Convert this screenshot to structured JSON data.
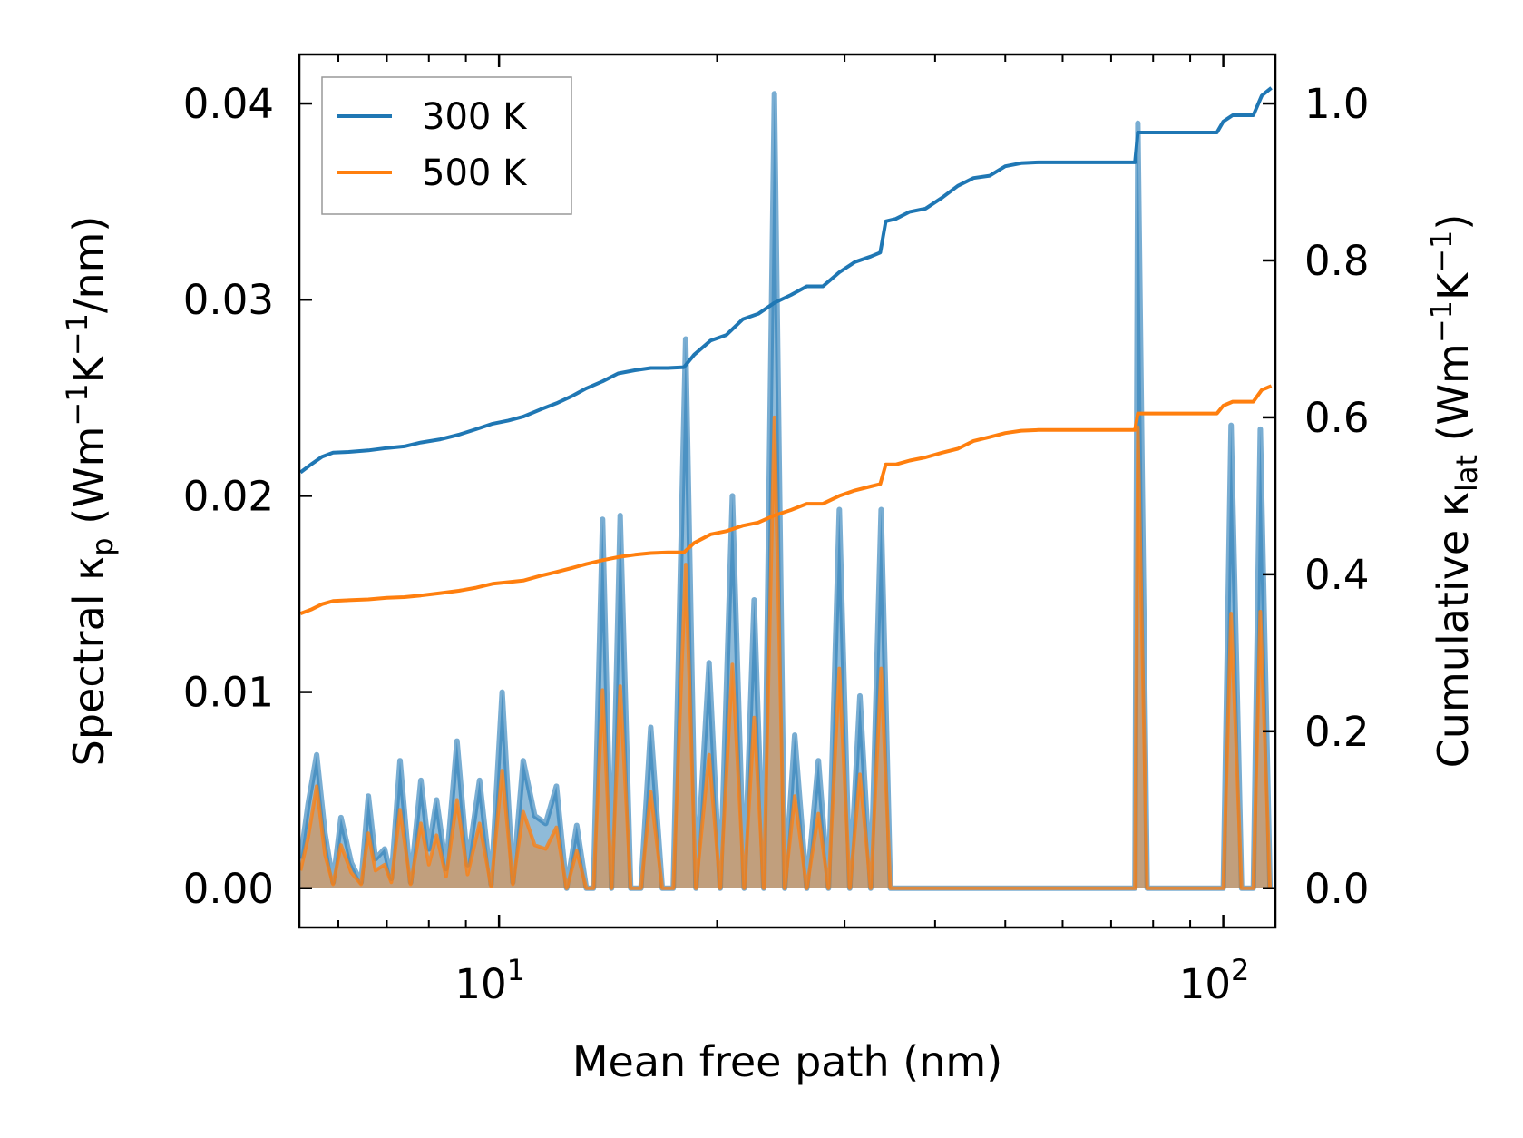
{
  "chart_data": {
    "type": "line",
    "xlabel": "Mean free path (nm)",
    "xscale": "log",
    "xlim": [
      5.3,
      118
    ],
    "ylabel_left": {
      "base": "Spectral κ",
      "sub": "p",
      "unit_pre": " (Wm",
      "sup1": "−1",
      "unit_mid": "K",
      "sup2": "−1",
      "unit_post": "/nm)"
    },
    "ylabel_right": {
      "base": "Cumulative κ",
      "sub": "lat",
      "unit_pre": " (Wm",
      "sup1": "−1",
      "unit_mid": "K",
      "sup2": "−1",
      "unit_post": ")"
    },
    "ylim_left": [
      -0.002,
      0.0425
    ],
    "ylim_right": [
      -0.05,
      1.0625
    ],
    "x_ticks": [
      {
        "value": 10,
        "base": "10",
        "exp": "1"
      },
      {
        "value": 100,
        "base": "10",
        "exp": "2"
      }
    ],
    "y_ticks_left": [
      {
        "value": 0.0,
        "label": "0.00"
      },
      {
        "value": 0.01,
        "label": "0.01"
      },
      {
        "value": 0.02,
        "label": "0.02"
      },
      {
        "value": 0.03,
        "label": "0.03"
      },
      {
        "value": 0.04,
        "label": "0.04"
      }
    ],
    "y_ticks_right": [
      {
        "value": 0.0,
        "label": "0.0"
      },
      {
        "value": 0.2,
        "label": "0.2"
      },
      {
        "value": 0.4,
        "label": "0.4"
      },
      {
        "value": 0.6,
        "label": "0.6"
      },
      {
        "value": 0.8,
        "label": "0.8"
      },
      {
        "value": 1.0,
        "label": "1.0"
      }
    ],
    "legend": {
      "position": "top-left",
      "entries": [
        {
          "name": "300 K",
          "color": "#1f77b4"
        },
        {
          "name": "500 K",
          "color": "#ff7f0e"
        }
      ]
    },
    "series": [
      {
        "name": "300 K",
        "color": "#1f77b4",
        "axis": "right",
        "kind": "cumulative",
        "x": [
          5.32,
          5.5,
          5.7,
          5.9,
          6.2,
          6.6,
          7.0,
          7.4,
          7.8,
          8.3,
          8.8,
          9.3,
          9.8,
          10.3,
          10.8,
          11.4,
          12.0,
          12.6,
          13.2,
          13.9,
          14.6,
          15.4,
          16.2,
          17.1,
          18.0,
          18.6,
          19.6,
          20.6,
          21.7,
          22.8,
          24.0,
          25.3,
          26.6,
          28.0,
          29.5,
          31.0,
          32.6,
          33.6,
          34.2,
          35.3,
          36.9,
          38.8,
          40.9,
          43.0,
          45.2,
          47.6,
          50.0,
          52.6,
          55.5,
          60.0,
          65.0,
          70.0,
          75.5,
          76.2,
          80.0,
          86.0,
          92.0,
          98.0,
          100.0,
          103.0,
          106.0,
          110.0,
          113.0,
          116.5
        ],
        "y": [
          0.53,
          0.54,
          0.55,
          0.555,
          0.556,
          0.558,
          0.561,
          0.563,
          0.568,
          0.572,
          0.578,
          0.585,
          0.592,
          0.596,
          0.601,
          0.61,
          0.618,
          0.627,
          0.637,
          0.646,
          0.656,
          0.66,
          0.663,
          0.663,
          0.664,
          0.68,
          0.698,
          0.705,
          0.725,
          0.732,
          0.746,
          0.756,
          0.767,
          0.767,
          0.785,
          0.798,
          0.805,
          0.81,
          0.85,
          0.853,
          0.862,
          0.866,
          0.88,
          0.895,
          0.905,
          0.908,
          0.92,
          0.924,
          0.925,
          0.925,
          0.925,
          0.925,
          0.925,
          0.963,
          0.963,
          0.963,
          0.963,
          0.963,
          0.977,
          0.985,
          0.985,
          0.985,
          1.01,
          1.02
        ]
      },
      {
        "name": "500 K",
        "color": "#ff7f0e",
        "axis": "right",
        "kind": "cumulative",
        "x": [
          5.32,
          5.5,
          5.7,
          5.9,
          6.2,
          6.6,
          7.0,
          7.4,
          7.8,
          8.3,
          8.8,
          9.3,
          9.8,
          10.3,
          10.8,
          11.4,
          12.0,
          12.6,
          13.2,
          13.9,
          14.6,
          15.4,
          16.2,
          17.1,
          18.0,
          18.6,
          19.6,
          20.6,
          21.7,
          22.8,
          24.0,
          25.3,
          26.6,
          28.0,
          29.5,
          31.0,
          32.6,
          33.6,
          34.2,
          35.3,
          36.9,
          38.8,
          40.9,
          43.0,
          45.2,
          47.6,
          50.0,
          52.6,
          55.5,
          60.0,
          65.0,
          70.0,
          75.5,
          76.2,
          80.0,
          86.0,
          92.0,
          98.0,
          100.0,
          103.0,
          106.0,
          110.0,
          113.0,
          116.5
        ],
        "y": [
          0.35,
          0.355,
          0.362,
          0.366,
          0.367,
          0.368,
          0.37,
          0.371,
          0.373,
          0.376,
          0.379,
          0.383,
          0.388,
          0.39,
          0.392,
          0.398,
          0.403,
          0.408,
          0.413,
          0.418,
          0.422,
          0.425,
          0.427,
          0.428,
          0.428,
          0.44,
          0.451,
          0.455,
          0.462,
          0.466,
          0.475,
          0.482,
          0.49,
          0.49,
          0.5,
          0.507,
          0.512,
          0.515,
          0.54,
          0.54,
          0.545,
          0.549,
          0.555,
          0.56,
          0.57,
          0.575,
          0.58,
          0.583,
          0.584,
          0.584,
          0.584,
          0.584,
          0.584,
          0.605,
          0.605,
          0.605,
          0.605,
          0.605,
          0.615,
          0.62,
          0.62,
          0.62,
          0.635,
          0.64
        ]
      },
      {
        "name": "300 K spectral",
        "color": "#1f77b4",
        "axis": "left",
        "kind": "spectral",
        "x": [
          5.32,
          5.45,
          5.6,
          5.75,
          5.9,
          6.05,
          6.25,
          6.45,
          6.6,
          6.75,
          6.95,
          7.1,
          7.3,
          7.55,
          7.8,
          8.0,
          8.2,
          8.45,
          8.75,
          9.05,
          9.4,
          9.75,
          10.1,
          10.45,
          10.8,
          11.2,
          11.6,
          12.0,
          12.4,
          12.8,
          13.2,
          13.5,
          13.9,
          14.3,
          14.7,
          15.2,
          15.7,
          16.2,
          16.8,
          17.4,
          18.1,
          18.7,
          19.5,
          20.2,
          21.0,
          21.8,
          22.5,
          23.2,
          24.0,
          24.8,
          25.6,
          26.6,
          27.6,
          28.5,
          29.5,
          30.5,
          31.5,
          32.6,
          33.7,
          34.7,
          35.8,
          37.0,
          38.2,
          39.5,
          40.8,
          42.2,
          43.6,
          45.1,
          46.7,
          48.3,
          50.0,
          51.8,
          53.7,
          55.7,
          58.0,
          62.0,
          67.0,
          72.0,
          75.5,
          76.2,
          78.5,
          85.0,
          92.0,
          98.0,
          100.0,
          102.5,
          106.0,
          110.0,
          112.5,
          116.0
        ],
        "y": [
          0.0015,
          0.0043,
          0.0068,
          0.0028,
          0.0003,
          0.0036,
          0.0013,
          0.0003,
          0.0047,
          0.0015,
          0.002,
          0.0005,
          0.0065,
          0.0003,
          0.0055,
          0.002,
          0.0045,
          0.001,
          0.0075,
          0.0012,
          0.0055,
          0.0002,
          0.01,
          0.0003,
          0.0065,
          0.0037,
          0.0033,
          0.0052,
          0.0,
          0.0032,
          0.0,
          0.0,
          0.0188,
          0.0,
          0.019,
          0.0,
          0.0,
          0.0082,
          0.0,
          0.0,
          0.028,
          0.0,
          0.0115,
          0.0,
          0.02,
          0.0,
          0.0147,
          0.0,
          0.0405,
          0.0,
          0.0078,
          0.0,
          0.0065,
          0.0,
          0.0193,
          0.0,
          0.0098,
          0.0,
          0.0193,
          0.0,
          0.0,
          0.0,
          0.0,
          0.0,
          0.0,
          0.0,
          0.0,
          0.0,
          0.0,
          0.0,
          0.0,
          0.0,
          0.0,
          0.0,
          0.0,
          0.0,
          0.0,
          0.0,
          0.0,
          0.039,
          0.0,
          0.0,
          0.0,
          0.0,
          0.0,
          0.0236,
          0.0,
          0.0,
          0.0234,
          0.0
        ]
      },
      {
        "name": "500 K spectral",
        "color": "#ff7f0e",
        "axis": "left",
        "kind": "spectral",
        "x": [
          5.32,
          5.45,
          5.6,
          5.75,
          5.9,
          6.05,
          6.25,
          6.45,
          6.6,
          6.75,
          6.95,
          7.1,
          7.3,
          7.55,
          7.8,
          8.0,
          8.2,
          8.45,
          8.75,
          9.05,
          9.4,
          9.75,
          10.1,
          10.45,
          10.8,
          11.2,
          11.6,
          12.0,
          12.4,
          12.8,
          13.2,
          13.5,
          13.9,
          14.3,
          14.7,
          15.2,
          15.7,
          16.2,
          16.8,
          17.4,
          18.1,
          18.7,
          19.5,
          20.2,
          21.0,
          21.8,
          22.5,
          23.2,
          24.0,
          24.8,
          25.6,
          26.6,
          27.6,
          28.5,
          29.5,
          30.5,
          31.5,
          32.6,
          33.7,
          34.7,
          35.8,
          37.0,
          38.2,
          39.5,
          40.8,
          42.2,
          43.6,
          45.1,
          46.7,
          48.3,
          50.0,
          51.8,
          53.7,
          55.7,
          58.0,
          62.0,
          67.0,
          72.0,
          75.5,
          76.2,
          78.5,
          85.0,
          92.0,
          98.0,
          100.0,
          102.5,
          106.0,
          110.0,
          112.5,
          116.0
        ],
        "y": [
          0.0009,
          0.0026,
          0.0052,
          0.0017,
          0.0002,
          0.0022,
          0.0008,
          0.0002,
          0.0028,
          0.0009,
          0.0012,
          0.0003,
          0.004,
          0.0002,
          0.0033,
          0.0012,
          0.0027,
          0.0006,
          0.0045,
          0.0007,
          0.0033,
          0.0001,
          0.006,
          0.0002,
          0.0039,
          0.0022,
          0.002,
          0.0031,
          0.0,
          0.0019,
          0.0,
          0.0,
          0.0101,
          0.0,
          0.0103,
          0.0,
          0.0,
          0.0049,
          0.0,
          0.0,
          0.0165,
          0.0,
          0.0068,
          0.0,
          0.0114,
          0.0,
          0.0087,
          0.0,
          0.024,
          0.0,
          0.0047,
          0.0,
          0.0038,
          0.0,
          0.0112,
          0.0,
          0.0058,
          0.0,
          0.0112,
          0.0,
          0.0,
          0.0,
          0.0,
          0.0,
          0.0,
          0.0,
          0.0,
          0.0,
          0.0,
          0.0,
          0.0,
          0.0,
          0.0,
          0.0,
          0.0,
          0.0,
          0.0,
          0.0,
          0.0,
          0.0235,
          0.0,
          0.0,
          0.0,
          0.0,
          0.0,
          0.014,
          0.0,
          0.0,
          0.0141,
          0.0
        ]
      }
    ]
  }
}
